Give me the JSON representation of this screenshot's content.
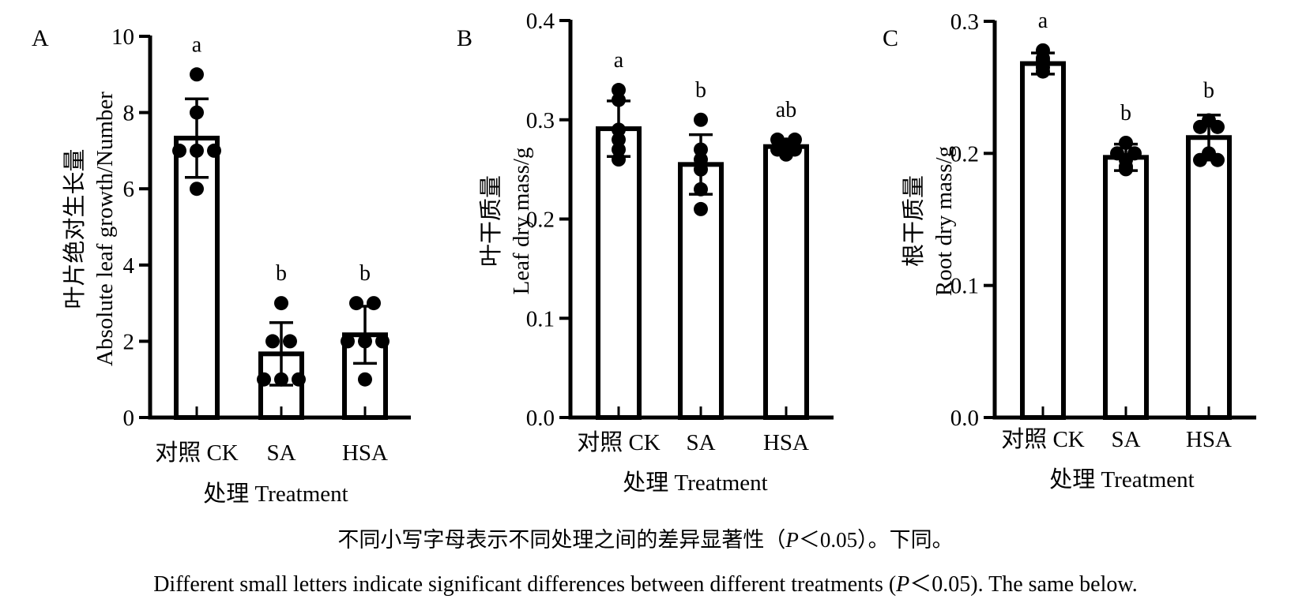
{
  "chart_data": [
    {
      "type": "bar",
      "panel_label": "A",
      "ylabel_cn": "叶片绝对生长量",
      "ylabel_en": "Absolute leaf growth/Number",
      "xlabel": "处理 Treatment",
      "categories": [
        "对照 CK",
        "SA",
        "HSA"
      ],
      "values": [
        7.33,
        1.67,
        2.17
      ],
      "error": [
        1.03,
        0.82,
        0.75
      ],
      "points": [
        [
          9,
          8,
          7,
          7,
          7,
          6
        ],
        [
          3,
          2,
          2,
          1,
          1,
          1
        ],
        [
          3,
          3,
          2,
          2,
          2,
          1
        ]
      ],
      "letters": [
        "a",
        "b",
        "b"
      ],
      "ylim": [
        0,
        10
      ],
      "yticks": [
        0,
        2,
        4,
        6,
        8,
        10
      ],
      "ytick_labels": [
        "0",
        "2",
        "4",
        "6",
        "8",
        "10"
      ]
    },
    {
      "type": "bar",
      "panel_label": "B",
      "ylabel_cn": "叶干质量",
      "ylabel_en": "Leaf dry mass/g",
      "xlabel": "处理 Treatment",
      "categories": [
        "对照 CK",
        "SA",
        "HSA"
      ],
      "values": [
        0.291,
        0.255,
        0.273
      ],
      "error": [
        0.028,
        0.03,
        0.007
      ],
      "points": [
        [
          0.33,
          0.32,
          0.29,
          0.28,
          0.27,
          0.26
        ],
        [
          0.3,
          0.27,
          0.26,
          0.25,
          0.23,
          0.21
        ],
        [
          0.28,
          0.28,
          0.275,
          0.27,
          0.27,
          0.265
        ]
      ],
      "letters": [
        "a",
        "b",
        "ab"
      ],
      "ylim": [
        0,
        0.4
      ],
      "yticks": [
        0.0,
        0.1,
        0.2,
        0.3,
        0.4
      ],
      "ytick_labels": [
        "0.0",
        "0.1",
        "0.2",
        "0.3",
        "0.4"
      ]
    },
    {
      "type": "bar",
      "panel_label": "C",
      "ylabel_cn": "根干质量",
      "ylabel_en": "Root dry mass/g",
      "xlabel": "处理 Treatment",
      "categories": [
        "对照 CK",
        "SA",
        "HSA"
      ],
      "values": [
        0.268,
        0.197,
        0.212
      ],
      "error": [
        0.008,
        0.01,
        0.017
      ],
      "points": [
        [
          0.278,
          0.272,
          0.27,
          0.268,
          0.265,
          0.262
        ],
        [
          0.208,
          0.2,
          0.2,
          0.195,
          0.19,
          0.188
        ],
        [
          0.225,
          0.22,
          0.22,
          0.2,
          0.195,
          0.195
        ]
      ],
      "letters": [
        "a",
        "b",
        "b"
      ],
      "ylim": [
        0,
        0.3
      ],
      "yticks": [
        0.0,
        0.1,
        0.2,
        0.3
      ],
      "ytick_labels": [
        "0.0",
        "0.1",
        "0.2",
        "0.3"
      ]
    }
  ],
  "caption": {
    "cn_main": "不同小写字母表示不同处理之间的差异显著性（",
    "cn_p": "P",
    "cn_threshold": "＜0.05）。下同。",
    "en_main": "Different small letters indicate significant differences between different treatments (",
    "en_p": "P",
    "en_threshold": "＜0.05). The same below."
  }
}
